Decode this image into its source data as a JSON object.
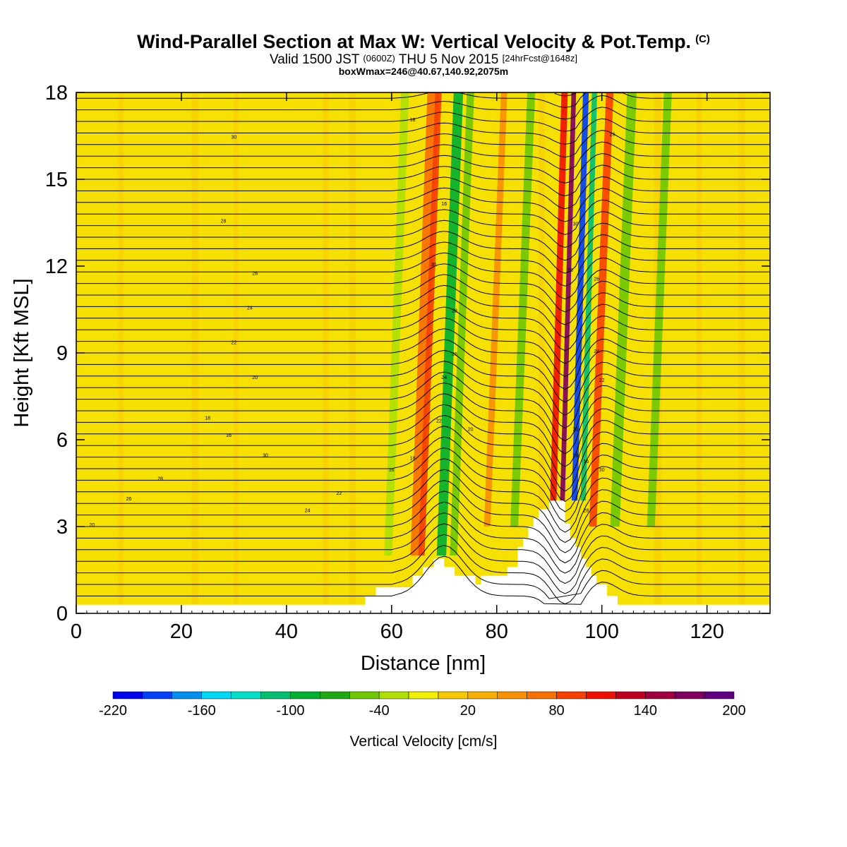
{
  "header": {
    "title_main": "Wind-Parallel Section at Max W: Vertical Velocity & Pot.Temp.",
    "title_unit": "(C)",
    "valid_prefix": "Valid 1500 JST",
    "valid_utc": "(0600Z)",
    "valid_date": "THU 5 Nov 2015",
    "valid_fcst": "[24hrFcst@1648z]",
    "box_info": "boxWmax=246@40.67,140.92,2075m"
  },
  "colors": {
    "background_fill": "#f5e000",
    "terrain": "#ffffff",
    "contour": "#000000"
  },
  "chart_data": {
    "type": "heatmap",
    "xlabel": "Distance [nm]",
    "ylabel": "Height [Kft MSL]",
    "xlim": [
      0,
      132
    ],
    "ylim": [
      0,
      18
    ],
    "x_ticks": [
      0,
      20,
      40,
      60,
      80,
      100,
      120
    ],
    "y_ticks": [
      0,
      3,
      6,
      9,
      12,
      15,
      18
    ],
    "colorbar": {
      "label": "Vertical Velocity [cm/s]",
      "min": -220,
      "max": 200,
      "step": 20,
      "tick_labels": [
        -220,
        -160,
        -100,
        -40,
        20,
        80,
        140,
        200
      ],
      "colors": [
        "#0000f0",
        "#0040f8",
        "#0090f0",
        "#00d8f8",
        "#00e0c8",
        "#00c070",
        "#00b030",
        "#20a810",
        "#70c800",
        "#b0e000",
        "#f0f000",
        "#f8c800",
        "#f8b000",
        "#f89000",
        "#f87000",
        "#f84000",
        "#f01000",
        "#c00020",
        "#a00040",
        "#800060",
        "#600080"
      ]
    },
    "terrain_profile": [
      [
        0,
        0.3
      ],
      [
        55,
        0.3
      ],
      [
        55,
        0.6
      ],
      [
        57,
        0.6
      ],
      [
        57,
        0.9
      ],
      [
        64,
        0.9
      ],
      [
        64,
        1.3
      ],
      [
        66,
        1.3
      ],
      [
        66,
        1.6
      ],
      [
        68,
        1.6
      ],
      [
        68,
        1.9
      ],
      [
        70,
        1.9
      ],
      [
        70,
        1.6
      ],
      [
        72,
        1.6
      ],
      [
        72,
        1.3
      ],
      [
        76,
        1.3
      ],
      [
        76,
        1.0
      ],
      [
        77,
        1.0
      ],
      [
        77,
        1.3
      ],
      [
        82,
        1.3
      ],
      [
        82,
        1.6
      ],
      [
        84,
        1.6
      ],
      [
        84,
        2.3
      ],
      [
        85,
        2.3
      ],
      [
        85,
        2.6
      ],
      [
        86,
        2.6
      ],
      [
        86,
        3.0
      ],
      [
        87,
        3.0
      ],
      [
        87,
        3.3
      ],
      [
        88,
        3.3
      ],
      [
        88,
        3.6
      ],
      [
        90,
        3.6
      ],
      [
        90,
        3.9
      ],
      [
        93,
        3.9
      ],
      [
        93,
        3.1
      ],
      [
        94,
        3.1
      ],
      [
        94,
        2.6
      ],
      [
        95,
        2.6
      ],
      [
        95,
        2.3
      ],
      [
        96,
        2.3
      ],
      [
        96,
        1.9
      ],
      [
        97,
        1.9
      ],
      [
        97,
        1.6
      ],
      [
        98,
        1.6
      ],
      [
        98,
        1.3
      ],
      [
        99,
        1.3
      ],
      [
        99,
        1.0
      ],
      [
        101,
        1.0
      ],
      [
        101,
        0.6
      ],
      [
        103,
        0.6
      ],
      [
        103,
        0.3
      ],
      [
        132,
        0.3
      ]
    ],
    "vertical_velocity_bands": [
      {
        "x": 61,
        "w": 1.5,
        "v": -40
      },
      {
        "x": 66,
        "w": 2.2,
        "v": 60
      },
      {
        "x": 67.5,
        "w": 1.2,
        "v": 90
      },
      {
        "x": 71,
        "w": 1.8,
        "v": -100
      },
      {
        "x": 73.5,
        "w": 1.4,
        "v": -60
      },
      {
        "x": 80,
        "w": 1.2,
        "v": 40
      },
      {
        "x": 85,
        "w": 1.5,
        "v": -60
      },
      {
        "x": 91.5,
        "w": 1.2,
        "v": 100
      },
      {
        "x": 93.4,
        "w": 0.9,
        "v": 160
      },
      {
        "x": 95.6,
        "w": 1.1,
        "v": -200
      },
      {
        "x": 97.3,
        "w": 1.0,
        "v": -120
      },
      {
        "x": 100,
        "w": 1.4,
        "v": 80
      },
      {
        "x": 104,
        "w": 1.8,
        "v": -60
      },
      {
        "x": 111,
        "w": 1.5,
        "v": -50
      }
    ],
    "isentrope_labels": [
      "30",
      "28",
      "26",
      "24",
      "22",
      "20",
      "18",
      "16"
    ]
  }
}
